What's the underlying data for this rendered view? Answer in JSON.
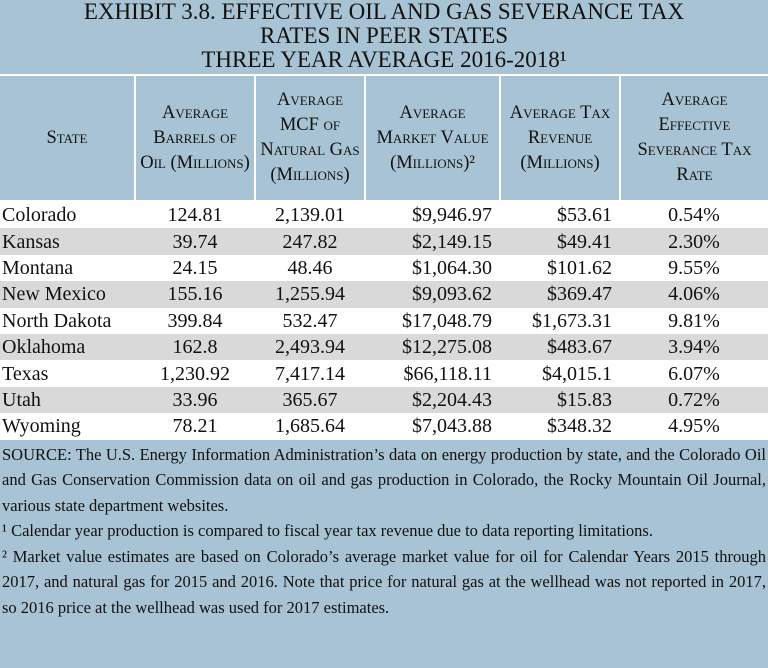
{
  "title": [
    "EXHIBIT 3.8. EFFECTIVE OIL AND GAS SEVERANCE TAX",
    "RATES IN PEER STATES",
    "THREE YEAR AVERAGE 2016-2018¹"
  ],
  "table": {
    "headers": [
      "State",
      "Average Barrels of Oil (Millions)",
      "Average MCF of Natural Gas (Millions)",
      "Average Market Value (Millions)²",
      "Average Tax Revenue (Millions)",
      "Average Effective Severance Tax Rate"
    ],
    "rows": [
      [
        "Colorado",
        "124.81",
        "2,139.01",
        "$9,946.97",
        "$53.61",
        "0.54%"
      ],
      [
        "Kansas",
        "39.74",
        "247.82",
        "$2,149.15",
        "$49.41",
        "2.30%"
      ],
      [
        "Montana",
        "24.15",
        "48.46",
        "$1,064.30",
        "$101.62",
        "9.55%"
      ],
      [
        "New Mexico",
        "155.16",
        "1,255.94",
        "$9,093.62",
        "$369.47",
        "4.06%"
      ],
      [
        "North Dakota",
        "399.84",
        "532.47",
        "$17,048.79",
        "$1,673.31",
        "9.81%"
      ],
      [
        "Oklahoma",
        "162.8",
        "2,493.94",
        "$12,275.08",
        "$483.67",
        "3.94%"
      ],
      [
        "Texas",
        "1,230.92",
        "7,417.14",
        "$66,118.11",
        "$4,015.1",
        "6.07%"
      ],
      [
        "Utah",
        "33.96",
        "365.67",
        "$2,204.43",
        "$15.83",
        "0.72%"
      ],
      [
        "Wyoming",
        "78.21",
        "1,685.64",
        "$7,043.88",
        "$348.32",
        "4.95%"
      ]
    ]
  },
  "notes": [
    "SOURCE: The U.S. Energy Information Administration’s data on energy production by state, and the Colorado Oil and Gas Conservation Commission data on oil and gas production in Colorado, the Rocky Mountain Oil Journal, various state department websites.",
    "¹ Calendar year production is compared to fiscal year tax revenue due to data reporting limitations.",
    "² Market value estimates are based on Colorado’s average market value for oil for Calendar Years 2015 through 2017, and natural gas for 2015 and 2016. Note that price for natural gas at the wellhead was not reported in 2017, so 2016 price at the wellhead was used for 2017 estimates."
  ]
}
